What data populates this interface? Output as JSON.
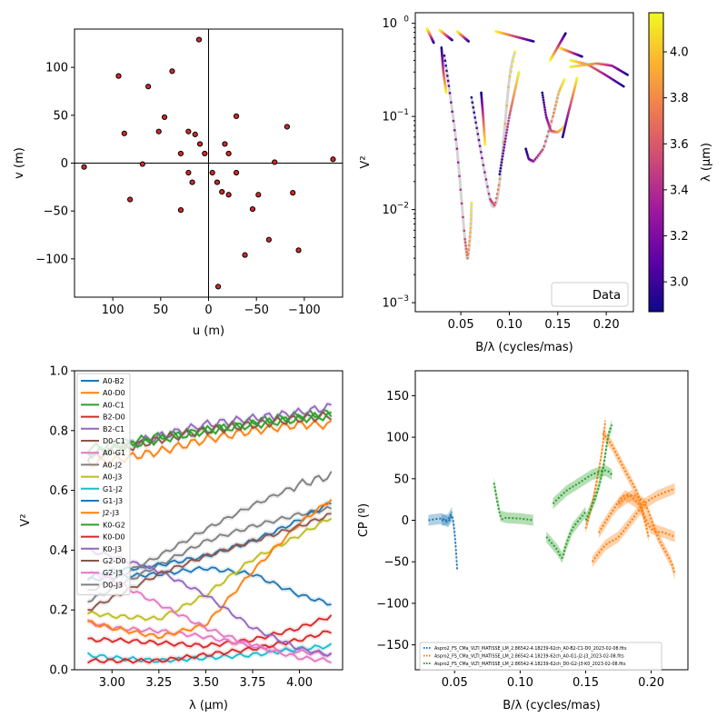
{
  "colors": {
    "axis": "#000000",
    "uv_marker_face": "#d62728",
    "uv_marker_edge": "#000000",
    "v2_error": "#b8b8b8",
    "cp_series": [
      "#1f77b4",
      "#ff7f0e",
      "#2ca02c"
    ],
    "plasma": [
      "#0d0887",
      "#5c01a6",
      "#9c179e",
      "#cc4778",
      "#ed7953",
      "#fdb32f",
      "#f0f921"
    ],
    "tab10": [
      "#1f77b4",
      "#ff7f0e",
      "#2ca02c",
      "#d62728",
      "#9467bd",
      "#8c564b",
      "#e377c2",
      "#7f7f7f",
      "#bcbd22",
      "#17becf"
    ]
  },
  "chart_data": [
    {
      "type": "scatter",
      "xlabel": "u (m)",
      "ylabel": "v (m)",
      "xlim": [
        140,
        -140
      ],
      "ylim": [
        -140,
        140
      ],
      "xticks": [
        100,
        50,
        0,
        -50,
        -100
      ],
      "xtick_labels": [
        "100",
        "50",
        "0",
        "−50",
        "−100"
      ],
      "yticks": [
        -100,
        -50,
        0,
        50,
        100
      ],
      "ytick_labels": [
        "−100",
        "−50",
        "0",
        "50",
        "100"
      ],
      "points": [
        [
          130,
          -4
        ],
        [
          -130,
          4
        ],
        [
          94,
          91
        ],
        [
          -94,
          -91
        ],
        [
          88,
          31
        ],
        [
          -88,
          -31
        ],
        [
          82,
          -38
        ],
        [
          -82,
          38
        ],
        [
          69,
          -1
        ],
        [
          -69,
          1
        ],
        [
          63,
          80
        ],
        [
          -63,
          -80
        ],
        [
          52,
          33
        ],
        [
          -52,
          -33
        ],
        [
          46,
          48
        ],
        [
          -46,
          -48
        ],
        [
          38,
          96
        ],
        [
          -38,
          -96
        ],
        [
          29,
          -49
        ],
        [
          -29,
          49
        ],
        [
          29,
          10
        ],
        [
          -29,
          -10
        ],
        [
          21,
          33
        ],
        [
          -21,
          -33
        ],
        [
          21,
          -10
        ],
        [
          -21,
          10
        ],
        [
          17,
          -20
        ],
        [
          -17,
          20
        ],
        [
          14,
          30
        ],
        [
          -14,
          -30
        ],
        [
          10,
          129
        ],
        [
          -10,
          -129
        ],
        [
          9,
          20
        ],
        [
          -9,
          -20
        ],
        [
          4,
          10
        ],
        [
          -4,
          -10
        ]
      ],
      "grid": false
    },
    {
      "type": "scatter",
      "xlabel": "B/λ (cycles/mas)",
      "ylabel": "V²",
      "yscale": "log",
      "xlim": [
        0.003,
        0.228
      ],
      "ylim": [
        0.0008,
        1.3
      ],
      "xticks": [
        0.05,
        0.1,
        0.15,
        0.2
      ],
      "xtick_labels": [
        "0.05",
        "0.10",
        "0.15",
        "0.20"
      ],
      "yticks": [
        0.001,
        0.01,
        0.1,
        1
      ],
      "legend": {
        "label": "Data",
        "loc": "lower right"
      },
      "colorbar": {
        "label": "λ (μm)",
        "range": [
          2.87,
          4.17
        ],
        "ticks": [
          3.0,
          3.2,
          3.4,
          3.6,
          3.8,
          4.0
        ],
        "tick_labels": [
          "3.0",
          "3.2",
          "3.4",
          "3.6",
          "3.8",
          "4.0"
        ]
      },
      "segments": [
        {
          "x": [
            0.022,
            0.015
          ],
          "y": [
            0.62,
            0.88
          ]
        },
        {
          "x": [
            0.041,
            0.028
          ],
          "y": [
            0.66,
            0.85
          ]
        },
        {
          "x": [
            0.058,
            0.046
          ],
          "y": [
            0.64,
            0.82
          ]
        },
        {
          "x": [
            0.125,
            0.086
          ],
          "y": [
            0.64,
            0.82
          ]
        },
        {
          "x": [
            0.175,
            0.151
          ],
          "y": [
            0.44,
            0.55
          ]
        },
        {
          "x": [
            0.158,
            0.142
          ],
          "y": [
            0.78,
            0.4
          ],
          "ctrl": [
            [
              0.147,
              0.62
            ]
          ]
        },
        {
          "x": [
            0.218,
            0.199,
            0.181,
            0.163
          ],
          "y": [
            0.21,
            0.28,
            0.36,
            0.4
          ]
        },
        {
          "x": [
            0.222,
            0.206,
            0.19,
            0.163
          ],
          "y": [
            0.28,
            0.35,
            0.37,
            0.34
          ]
        },
        {
          "x": [
            0.033,
            0.038,
            0.046,
            0.054,
            0.057,
            0.06,
            0.061
          ],
          "y": [
            0.45,
            0.2,
            0.045,
            0.005,
            0.003,
            0.006,
            0.012
          ]
        },
        {
          "x": [
            0.03,
            0.032,
            0.035
          ],
          "y": [
            0.55,
            0.3,
            0.18
          ]
        },
        {
          "x": [
            0.061,
            0.066,
            0.072,
            0.08,
            0.085,
            0.09,
            0.1,
            0.106
          ],
          "y": [
            0.16,
            0.08,
            0.035,
            0.013,
            0.011,
            0.02,
            0.25,
            0.5
          ]
        },
        {
          "x": [
            0.071,
            0.073,
            0.075
          ],
          "y": [
            0.18,
            0.1,
            0.05
          ]
        },
        {
          "x": [
            0.09,
            0.1,
            0.11
          ],
          "y": [
            0.024,
            0.1,
            0.3
          ]
        },
        {
          "x": [
            0.117,
            0.12,
            0.125,
            0.135,
            0.145,
            0.151,
            0.157
          ],
          "y": [
            0.045,
            0.035,
            0.033,
            0.045,
            0.1,
            0.18,
            0.25
          ]
        },
        {
          "x": [
            0.134,
            0.138,
            0.143,
            0.15,
            0.158
          ],
          "y": [
            0.18,
            0.1,
            0.07,
            0.068,
            0.08
          ]
        },
        {
          "x": [
            0.155,
            0.16,
            0.165,
            0.17
          ],
          "y": [
            0.06,
            0.1,
            0.16,
            0.26
          ]
        }
      ],
      "grid": false
    },
    {
      "type": "line",
      "xlabel": "λ (μm)",
      "ylabel": "V²",
      "xlim": [
        2.8,
        4.23
      ],
      "ylim": [
        0.0,
        1.0
      ],
      "xticks": [
        3.0,
        3.25,
        3.5,
        3.75,
        4.0
      ],
      "xtick_labels": [
        "3.00",
        "3.25",
        "3.50",
        "3.75",
        "4.00"
      ],
      "yticks": [
        0.0,
        0.2,
        0.4,
        0.6,
        0.8,
        1.0
      ],
      "ytick_labels": [
        "0.0",
        "0.2",
        "0.4",
        "0.6",
        "0.8",
        "1.0"
      ],
      "legend_loc": "upper left",
      "x": [
        2.87,
        3.0,
        3.25,
        3.5,
        3.75,
        4.0,
        4.17
      ],
      "series": [
        {
          "name": "A0-B2",
          "values": [
            0.3,
            0.31,
            0.32,
            0.34,
            0.32,
            0.25,
            0.22
          ]
        },
        {
          "name": "A0-D0",
          "values": [
            0.69,
            0.7,
            0.73,
            0.77,
            0.8,
            0.82,
            0.82
          ]
        },
        {
          "name": "A0-C1",
          "values": [
            0.74,
            0.75,
            0.78,
            0.8,
            0.83,
            0.85,
            0.86
          ]
        },
        {
          "name": "B2-D0",
          "values": [
            0.1,
            0.1,
            0.09,
            0.08,
            0.1,
            0.14,
            0.18
          ]
        },
        {
          "name": "B2-C1",
          "values": [
            0.72,
            0.74,
            0.78,
            0.82,
            0.84,
            0.86,
            0.88
          ]
        },
        {
          "name": "D0-C1",
          "values": [
            0.71,
            0.73,
            0.77,
            0.8,
            0.82,
            0.84,
            0.85
          ]
        },
        {
          "name": "A0-G1",
          "values": [
            0.16,
            0.14,
            0.13,
            0.11,
            0.08,
            0.06,
            0.05
          ]
        },
        {
          "name": "A0-J2",
          "values": [
            0.23,
            0.27,
            0.35,
            0.43,
            0.48,
            0.52,
            0.54
          ]
        },
        {
          "name": "A0-J3",
          "values": [
            0.19,
            0.18,
            0.17,
            0.25,
            0.37,
            0.45,
            0.51
          ]
        },
        {
          "name": "G1-J2",
          "values": [
            0.05,
            0.04,
            0.03,
            0.04,
            0.05,
            0.07,
            0.08
          ]
        },
        {
          "name": "G1-J3",
          "values": [
            0.31,
            0.33,
            0.35,
            0.38,
            0.43,
            0.5,
            0.56
          ]
        },
        {
          "name": "J2-J3",
          "values": [
            0.16,
            0.14,
            0.11,
            0.15,
            0.33,
            0.49,
            0.57
          ]
        },
        {
          "name": "K0-G2",
          "values": [
            0.72,
            0.74,
            0.77,
            0.8,
            0.82,
            0.84,
            0.85
          ]
        },
        {
          "name": "K0-D0",
          "values": [
            0.03,
            0.03,
            0.03,
            0.05,
            0.07,
            0.1,
            0.13
          ]
        },
        {
          "name": "K0-J3",
          "values": [
            0.4,
            0.38,
            0.33,
            0.25,
            0.14,
            0.07,
            0.05
          ]
        },
        {
          "name": "G2-D0",
          "values": [
            0.2,
            0.24,
            0.32,
            0.38,
            0.43,
            0.48,
            0.52
          ]
        },
        {
          "name": "G2-J3",
          "values": [
            0.33,
            0.3,
            0.22,
            0.14,
            0.08,
            0.04,
            0.03
          ]
        },
        {
          "name": "D0-J3",
          "values": [
            0.26,
            0.3,
            0.38,
            0.47,
            0.55,
            0.62,
            0.65
          ]
        }
      ],
      "grid": false
    },
    {
      "type": "scatter",
      "xlabel": "B/λ (cycles/mas)",
      "ylabel": "CP (º)",
      "xlim": [
        0.02,
        0.228
      ],
      "ylim": [
        -180,
        180
      ],
      "xticks": [
        0.05,
        0.1,
        0.15,
        0.2
      ],
      "xtick_labels": [
        "0.05",
        "0.10",
        "0.15",
        "0.20"
      ],
      "yticks": [
        -150,
        -100,
        -50,
        0,
        50,
        100,
        150
      ],
      "ytick_labels": [
        "−150",
        "−100",
        "−50",
        "0",
        "50",
        "100",
        "150"
      ],
      "legend_loc": "lower left",
      "series": [
        {
          "name": "Aspro2_FS_CMa_VLTI_MATISSE_LM_2.86542-4.18239-62ch_A0-B2-C1-D0_2023-02-08.fits",
          "segments": [
            {
              "x": [
                0.03,
                0.04,
                0.045,
                0.048,
                0.05,
                0.052
              ],
              "y": [
                0,
                2,
                -2,
                5,
                -15,
                -60
              ]
            },
            {
              "x": [
                0.04,
                0.045,
                0.048
              ],
              "y": [
                0,
                1,
                10
              ]
            }
          ]
        },
        {
          "name": "Aspro2_FS_CMa_VLTI_MATISSE_LM_2.86542-4.18239-62ch_A0-G1-J2-J3_2023-02-08.fits",
          "segments": [
            {
              "x": [
                0.15,
                0.155,
                0.16,
                0.163,
                0.165
              ],
              "y": [
                -10,
                20,
                60,
                90,
                120
              ]
            },
            {
              "x": [
                0.163,
                0.17,
                0.18,
                0.19,
                0.195,
                0.198
              ],
              "y": [
                105,
                90,
                60,
                30,
                0,
                -20
              ]
            },
            {
              "x": [
                0.155,
                0.165,
                0.175,
                0.185,
                0.195,
                0.205,
                0.218
              ],
              "y": [
                -50,
                -30,
                -20,
                0,
                20,
                30,
                38
              ]
            },
            {
              "x": [
                0.16,
                0.17,
                0.18,
                0.19,
                0.2,
                0.21,
                0.218
              ],
              "y": [
                -15,
                10,
                30,
                20,
                -10,
                -15,
                -20
              ]
            },
            {
              "x": [
                0.175,
                0.185,
                0.195,
                0.205,
                0.215,
                0.218
              ],
              "y": [
                20,
                30,
                20,
                -20,
                -50,
                -65
              ]
            }
          ]
        },
        {
          "name": "Aspro2_FS_CMa_VLTI_MATISSE_LM_2.86542-4.18239-62ch_D0-G2-J3-K0_2023-02-08.fits",
          "segments": [
            {
              "x": [
                0.08,
                0.085,
                0.09,
                0.1,
                0.11
              ],
              "y": [
                45,
                5,
                3,
                2,
                0
              ]
            },
            {
              "x": [
                0.12,
                0.128,
                0.132,
                0.135,
                0.14,
                0.15
              ],
              "y": [
                -20,
                -35,
                -45,
                -30,
                -10,
                10
              ]
            },
            {
              "x": [
                0.125,
                0.135,
                0.145,
                0.155,
                0.165,
                0.17
              ],
              "y": [
                20,
                35,
                45,
                55,
                60,
                55
              ]
            },
            {
              "x": [
                0.15,
                0.158,
                0.163,
                0.167,
                0.17
              ],
              "y": [
                0,
                30,
                60,
                100,
                115
              ]
            }
          ]
        }
      ],
      "grid": false
    }
  ]
}
